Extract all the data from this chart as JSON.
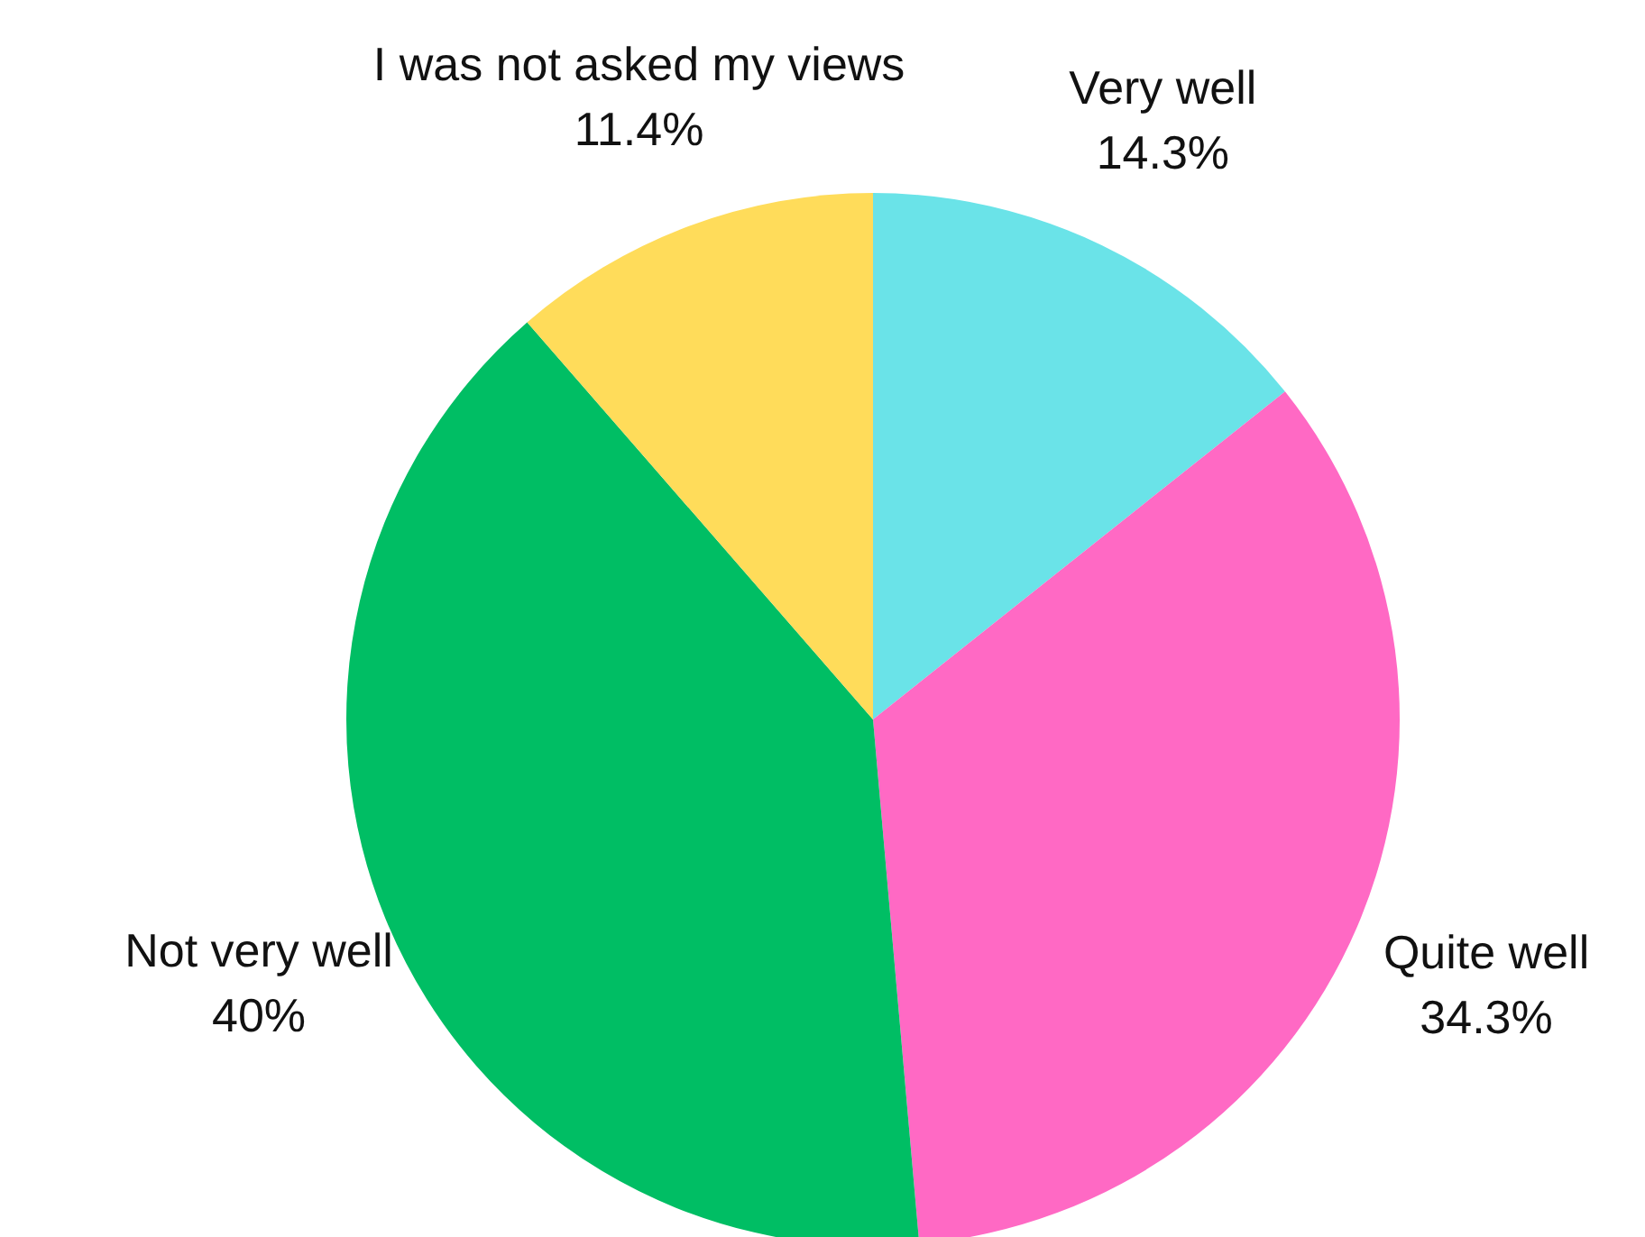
{
  "chart_data": {
    "type": "pie",
    "categories": [
      "Very well",
      "Quite well",
      "Not very well",
      "I was not asked my views"
    ],
    "values": [
      14.3,
      34.3,
      40,
      11.4
    ],
    "value_labels": [
      "14.3%",
      "34.3%",
      "40%",
      "11.4%"
    ],
    "colors": [
      "#6ae3e8",
      "#ff69c4",
      "#00be64",
      "#ffdc5a"
    ],
    "legend": false
  }
}
